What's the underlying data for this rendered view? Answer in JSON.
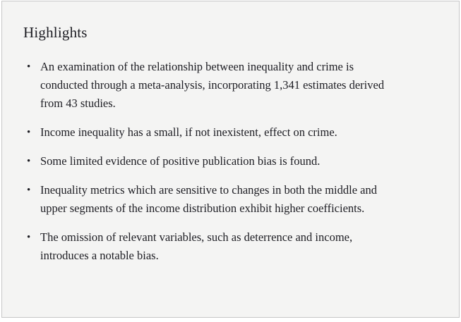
{
  "highlights": {
    "title": "Highlights",
    "bullet_glyph": "•",
    "items": [
      "An examination of the relationship between inequality and crime is conducted through a meta-analysis, incorporating 1,341 estimates derived from 43 studies.",
      "Income inequality has a small, if not inexistent, effect on crime.",
      "Some limited evidence of positive publication bias is found.",
      "Inequality metrics which are sensitive to changes in both the middle and upper segments of the income distribution exhibit higher coefficients.",
      "The omission of relevant variables, such as deterrence and income, introduces a notable bias."
    ]
  },
  "colors": {
    "page_background": "#ffffff",
    "panel_background": "#f4f4f3",
    "panel_border": "#c7c7c7",
    "text": "#1d1d23"
  }
}
